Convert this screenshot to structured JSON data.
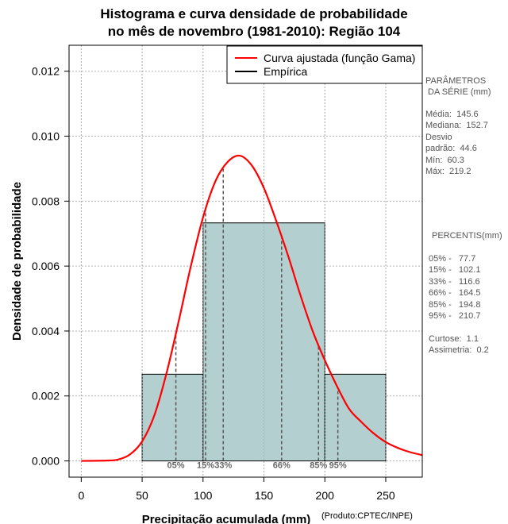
{
  "chart_data": {
    "type": "histogram",
    "title": [
      "Histograma e curva densidade de probabilidade",
      "no mês de novembro (1981-2010): Região 104"
    ],
    "xlabel": "Precipitação acumulada (mm)",
    "ylabel": "Densidade de probabilidade",
    "xlim": [
      -10,
      280
    ],
    "ylim": [
      -0.0005,
      0.0128
    ],
    "xticks": [
      0,
      50,
      100,
      150,
      200,
      250
    ],
    "yticks": [
      0.0,
      0.002,
      0.004,
      0.006,
      0.008,
      0.01,
      0.012
    ],
    "ytick_labels": [
      "0.000",
      "0.002",
      "0.004",
      "0.006",
      "0.008",
      "0.010",
      "0.012"
    ],
    "grid": true,
    "bins": [
      {
        "x0": 50,
        "x1": 100,
        "density": 0.00267
      },
      {
        "x0": 100,
        "x1": 200,
        "density": 0.00733
      },
      {
        "x0": 200,
        "x1": 250,
        "density": 0.00267
      }
    ],
    "gamma_fit": {
      "label": "Curva ajustada (função Gama)",
      "mean": 145.6,
      "sd": 44.6,
      "color": "#ff0000",
      "points": [
        [
          0,
          0.0
        ],
        [
          20,
          1e-05
        ],
        [
          30,
          4e-05
        ],
        [
          40,
          0.0002
        ],
        [
          50,
          0.0006
        ],
        [
          60,
          0.0014
        ],
        [
          70,
          0.0027
        ],
        [
          80,
          0.0043
        ],
        [
          90,
          0.006
        ],
        [
          100,
          0.0075
        ],
        [
          110,
          0.0086
        ],
        [
          120,
          0.0092
        ],
        [
          130,
          0.0094
        ],
        [
          140,
          0.0091
        ],
        [
          150,
          0.0084
        ],
        [
          160,
          0.0074
        ],
        [
          170,
          0.0063
        ],
        [
          180,
          0.0051
        ],
        [
          190,
          0.004
        ],
        [
          200,
          0.0031
        ],
        [
          210,
          0.0023
        ],
        [
          220,
          0.0016
        ],
        [
          230,
          0.0012
        ],
        [
          240,
          0.00085
        ],
        [
          250,
          0.00058
        ],
        [
          260,
          0.0004
        ],
        [
          270,
          0.00027
        ],
        [
          280,
          0.00018
        ]
      ]
    },
    "empirical_label": "Empírica",
    "hist_fill": "#b3cfcf",
    "percentile_lines": [
      {
        "label": "05%",
        "x": 77.7
      },
      {
        "label": "15%",
        "x": 102.1
      },
      {
        "label": "33%",
        "x": 116.6
      },
      {
        "label": "66%",
        "x": 164.5
      },
      {
        "label": "85%",
        "x": 194.8
      },
      {
        "label": "95%",
        "x": 210.7
      }
    ],
    "legend_position": "top-right",
    "credit": "(Produto:CPTEC/INPE)"
  },
  "stats_panel": {
    "heading": [
      "PARÂMETROS",
      " DA SÉRIE (mm)"
    ],
    "params": [
      "Média:  145.6",
      "Mediana:  152.7",
      "Desvio",
      "padrão:  44.6",
      "Mín:  60.3",
      "Máx:  219.2"
    ],
    "percentis_heading": "PERCENTIS(mm)",
    "percentis": [
      "05% -   77.7",
      "15% -   102.1",
      "33% -   116.6",
      "66% -   164.5",
      "85% -   194.8",
      "95% -   210.7"
    ],
    "shape": [
      "Curtose:  1.1",
      "Assimetria:  0.2"
    ]
  }
}
